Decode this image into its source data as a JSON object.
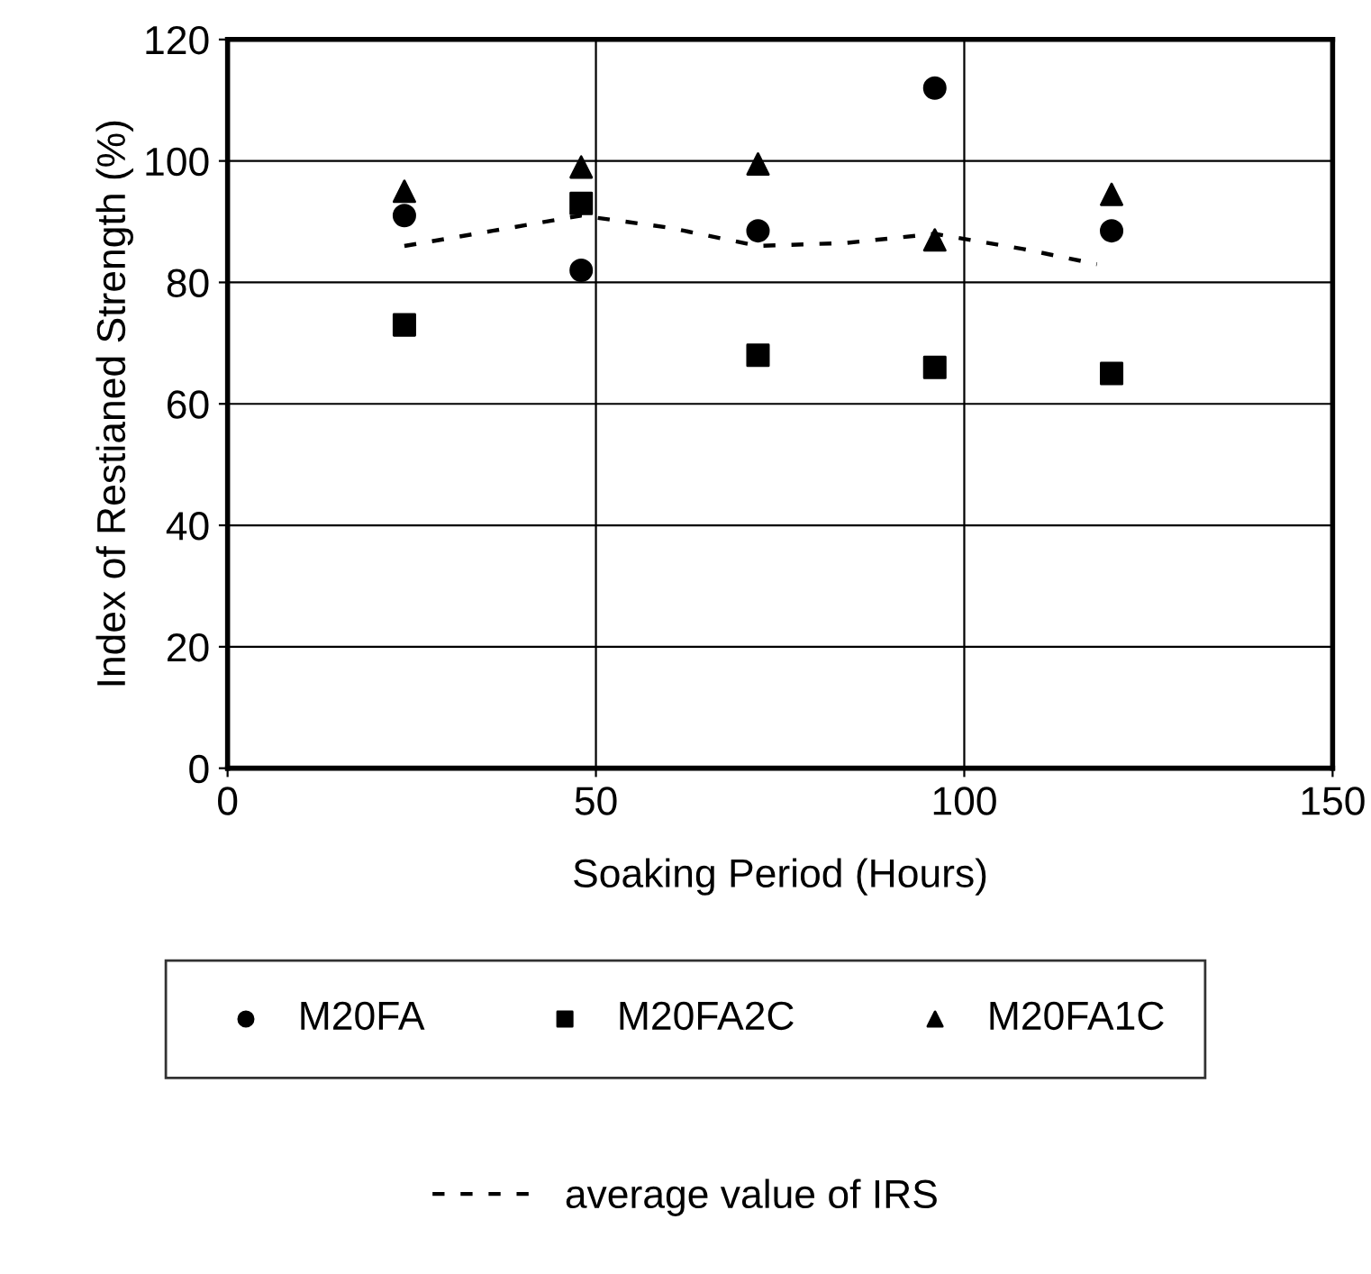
{
  "chart_data": {
    "type": "scatter",
    "xlabel": "Soaking Period (Hours)",
    "ylabel": "Index of Restianed Strength (%)",
    "x": [
      24,
      48,
      72,
      96,
      120
    ],
    "series": [
      {
        "name": "M20FA",
        "color": "#000000",
        "marker": "circle",
        "values": [
          91,
          82,
          88.5,
          112,
          88.5
        ]
      },
      {
        "name": "M20FA2C",
        "color": "#000000",
        "marker": "square",
        "values": [
          73,
          93,
          68,
          66,
          65
        ]
      },
      {
        "name": "M20FA1C",
        "color": "#000000",
        "marker": "triangle",
        "values": [
          95,
          99,
          99.5,
          87,
          94.5
        ]
      },
      {
        "name": "average value of IRS",
        "type": "line",
        "color": "#000000",
        "line_style": "dashed",
        "marker": "none",
        "x": [
          24,
          36,
          48,
          60,
          72,
          84,
          96,
          108,
          118
        ],
        "values": [
          86,
          88.5,
          91,
          89,
          86,
          86.5,
          88,
          85.5,
          83
        ]
      }
    ],
    "xlim": [
      0,
      150
    ],
    "xticks": [
      0,
      50,
      100,
      150
    ],
    "ylim": [
      0,
      120
    ],
    "yticks": [
      0,
      20,
      40,
      60,
      80,
      100,
      120
    ],
    "grid": true,
    "legend": "bottom"
  }
}
